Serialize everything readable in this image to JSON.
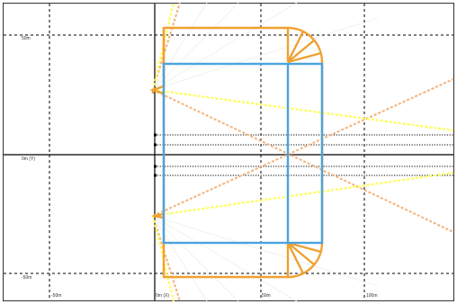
{
  "plot": {
    "axis_labels": {
      "y_top": "50m",
      "y_mid": "0m (Y)",
      "y_bottom": "-50m",
      "x_left": "-50m",
      "x_origin": "0m (X)",
      "x_mid": "50m",
      "x_right": "100m"
    },
    "colors": {
      "frame": "#333333",
      "grid": "#000000",
      "axis": "#000000",
      "blue_rect": "#4aa3df",
      "orange_rect": "#f0a030",
      "yellow_rays": "#ffff55",
      "light_orange_rays": "#f4b27a",
      "faint_lines": "#e6e6e6"
    }
  }
}
